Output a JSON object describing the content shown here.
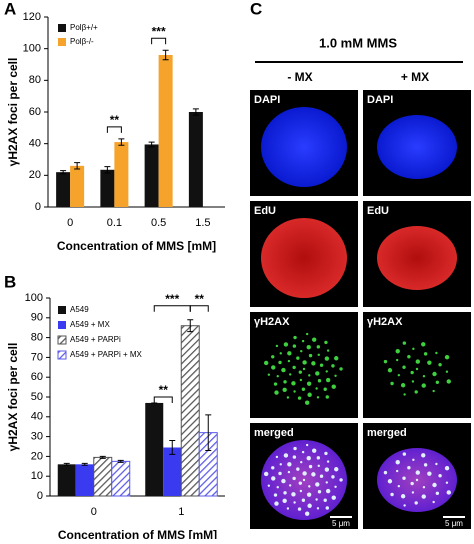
{
  "panel_labels": [
    "A",
    "B",
    "C"
  ],
  "chart_data": [
    {
      "type": "bar",
      "y_label": "γH2AX foci per cell",
      "x_label": "Concentration of MMS [mM]",
      "categories": [
        "0",
        "0.1",
        "0.5",
        "1.5"
      ],
      "series": [
        {
          "name": "Polβ+/+",
          "color": "#111111",
          "values": [
            22,
            23.5,
            39.5,
            60
          ],
          "errors": [
            1,
            2,
            1.5,
            2
          ]
        },
        {
          "name": "Polβ-/-",
          "color": "#f5a32a",
          "values": [
            26,
            41,
            96,
            null
          ],
          "errors": [
            2,
            2,
            3,
            null
          ]
        }
      ],
      "ylim": [
        0,
        120
      ],
      "yticks": [
        0,
        20,
        40,
        60,
        80,
        100,
        120
      ],
      "annotations": [
        "**",
        "***"
      ]
    },
    {
      "type": "bar",
      "y_label": "γH2AX foci per cell",
      "x_label": "Concentration of MMS [mM]",
      "categories": [
        "0",
        "1"
      ],
      "series": [
        {
          "name": "A549",
          "color": "#111111",
          "values": [
            16,
            47
          ],
          "errors": [
            0.5,
            0
          ]
        },
        {
          "name": "A549 + MX",
          "color": "#3a3af0",
          "values": [
            16,
            24.5
          ],
          "errors": [
            0.5,
            3.5
          ]
        },
        {
          "name": "A549 + PARPi",
          "color": "#555555",
          "pattern": "hatch",
          "values": [
            19.5,
            86
          ],
          "errors": [
            0.5,
            3
          ]
        },
        {
          "name": "A549 + PARPi + MX",
          "color": "#5a5ae8",
          "pattern": "hatch",
          "values": [
            17.5,
            32
          ],
          "errors": [
            0.5,
            9
          ]
        }
      ],
      "ylim": [
        0,
        100
      ],
      "yticks": [
        0,
        10,
        20,
        30,
        40,
        50,
        60,
        70,
        80,
        90,
        100
      ],
      "annotations": [
        "**",
        "***",
        "**"
      ]
    }
  ],
  "panel_c": {
    "title": "1.0 mM MMS",
    "columns": [
      "- MX",
      "+ MX"
    ],
    "rows": [
      [
        "DAPI",
        "DAPI"
      ],
      [
        "EdU",
        "EdU"
      ],
      [
        "γH2AX",
        "γH2AX"
      ],
      [
        "merged",
        "merged"
      ]
    ],
    "scale_bars": [
      "5 μm",
      "5 μm"
    ]
  }
}
